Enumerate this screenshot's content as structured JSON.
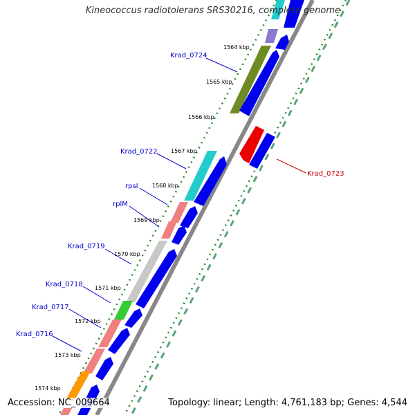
{
  "title": "Kineococcus radiotolerans SRS30216, complete genome",
  "footer": {
    "accession": "Accession: NC_009664",
    "topology": "Topology: linear; Length: 4,761,183 bp; Genes: 4,544"
  },
  "colors": {
    "gene_label": "#0000cc",
    "gene_label_reverse": "#cc0000",
    "cds": "#0000ee",
    "backbone": "#888888",
    "gc_dots": "#228B22"
  },
  "ticks": [
    {
      "label": "1564 kbp"
    },
    {
      "label": "1565 kbp"
    },
    {
      "label": "1566 kbp"
    },
    {
      "label": "1567 kbp"
    },
    {
      "label": "1568 kbp"
    },
    {
      "label": "1569 kbp"
    },
    {
      "label": "1570 kbp"
    },
    {
      "label": "1571 kbp"
    },
    {
      "label": "1572 kbp"
    },
    {
      "label": "1573 kbp"
    },
    {
      "label": "1574 kbp"
    }
  ],
  "gene_labels": [
    {
      "label": "Krad_0724"
    },
    {
      "label": "Krad_0722"
    },
    {
      "label": "rpsI"
    },
    {
      "label": "rplM"
    },
    {
      "label": "Krad_0719"
    },
    {
      "label": "Krad_0718"
    },
    {
      "label": "Krad_0717"
    },
    {
      "label": "Krad_0716"
    },
    {
      "label": "Krad_0723"
    }
  ]
}
